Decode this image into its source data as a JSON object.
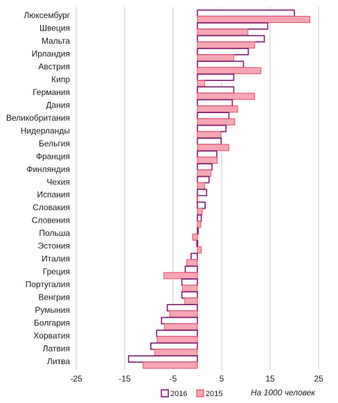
{
  "chart_data": {
    "type": "bar",
    "orientation": "horizontal",
    "categories": [
      "Люксембург",
      "Швеция",
      "Мальта",
      "Ирландия",
      "Австрия",
      "Кипр",
      "Германия",
      "Дания",
      "Великобритания",
      "Нидерланды",
      "Бельгия",
      "Франция",
      "Финляндия",
      "Чехия",
      "Испания",
      "Словакия",
      "Словения",
      "Польша",
      "Эстония",
      "Италия",
      "Греция",
      "Португалия",
      "Венгрия",
      "Румыния",
      "Болгария",
      "Хорватия",
      "Латвия",
      "Литва"
    ],
    "series": [
      {
        "name": "2016",
        "color": "#7b1a6b",
        "fill": "#ffffff",
        "values": [
          20.0,
          14.5,
          13.8,
          10.5,
          9.5,
          7.5,
          7.5,
          7.2,
          6.5,
          5.9,
          4.9,
          4.0,
          3.0,
          2.4,
          1.9,
          1.6,
          0.8,
          0.1,
          -0.1,
          -1.3,
          -2.5,
          -3.2,
          -3.2,
          -6.2,
          -7.4,
          -8.4,
          -9.6,
          -14.2
        ]
      },
      {
        "name": "2015",
        "color": "#e8607a",
        "fill": "#f7a6b5",
        "values": [
          23.2,
          10.4,
          11.8,
          7.5,
          13.1,
          1.5,
          11.8,
          8.3,
          7.7,
          4.8,
          6.5,
          4.1,
          2.8,
          1.5,
          -0.1,
          1.0,
          0.7,
          -1.0,
          0.8,
          -2.2,
          -6.9,
          -3.1,
          -2.6,
          -5.7,
          -6.8,
          -8.3,
          -8.8,
          -11.2
        ]
      }
    ],
    "xlim": [
      -25,
      25
    ],
    "xticks": [
      "-25",
      "-15",
      "-5",
      "5",
      "15",
      "25"
    ],
    "xtick_values": [
      -25,
      -15,
      -5,
      5,
      15,
      25
    ],
    "unit_label": "На 1000 человек",
    "grid": "vertical",
    "legend_position": "bottom"
  }
}
